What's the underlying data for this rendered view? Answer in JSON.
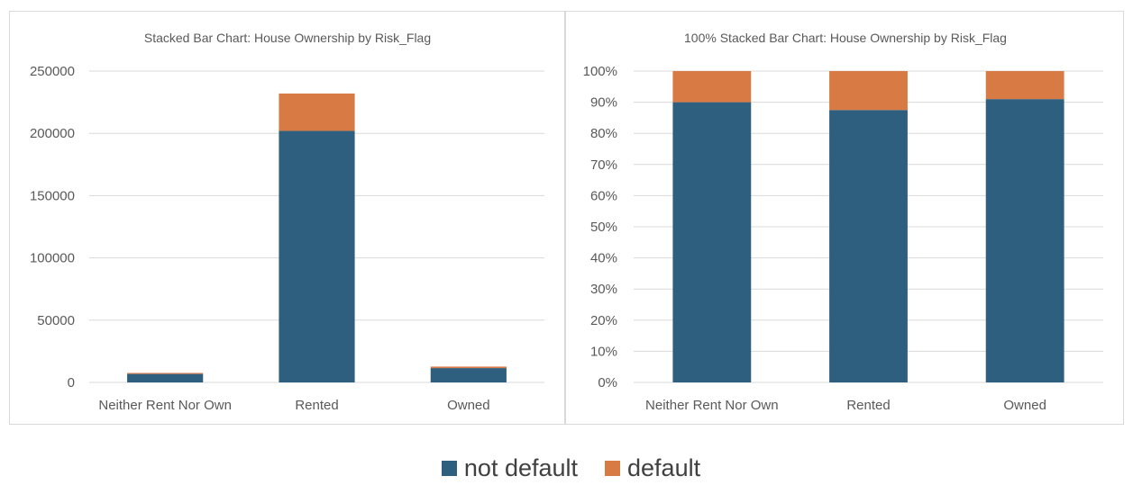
{
  "colors": {
    "not_default": "#2e5f7f",
    "default": "#d87a44",
    "gridline": "#d9d9d9",
    "text": "#595959"
  },
  "legend": {
    "position": "bottom",
    "items": [
      {
        "label": "not default",
        "color": "#2e5f7f"
      },
      {
        "label": "default",
        "color": "#d87a44"
      }
    ]
  },
  "chart_data": [
    {
      "type": "bar",
      "stacked": true,
      "title": "Stacked Bar Chart: House Ownership by Risk_Flag",
      "categories": [
        "Neither Rent Nor Own",
        "Rented",
        "Owned"
      ],
      "series": [
        {
          "name": "not default",
          "values": [
            6800,
            202000,
            11500
          ]
        },
        {
          "name": "default",
          "values": [
            800,
            30000,
            1200
          ]
        }
      ],
      "ylim": [
        0,
        250000
      ],
      "yticks": [
        "0",
        "50000",
        "100000",
        "150000",
        "200000",
        "250000"
      ],
      "grid": true
    },
    {
      "type": "bar",
      "stacked": true,
      "percent": true,
      "title": "100% Stacked Bar Chart: House Ownership by Risk_Flag",
      "categories": [
        "Neither Rent Nor Own",
        "Rented",
        "Owned"
      ],
      "series": [
        {
          "name": "not default",
          "values": [
            90,
            87.5,
            91
          ]
        },
        {
          "name": "default",
          "values": [
            10,
            12.5,
            9
          ]
        }
      ],
      "ylim": [
        0,
        100
      ],
      "yticks": [
        "0%",
        "10%",
        "20%",
        "30%",
        "40%",
        "50%",
        "60%",
        "70%",
        "80%",
        "90%",
        "100%"
      ],
      "grid": true
    }
  ]
}
